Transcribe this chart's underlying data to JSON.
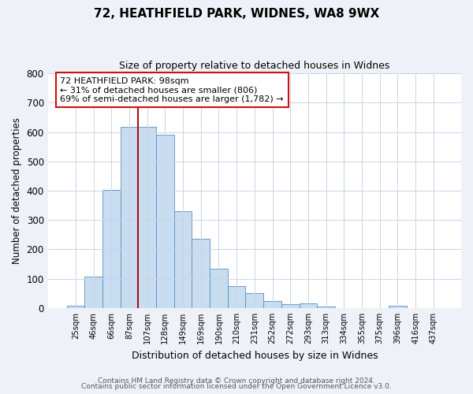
{
  "title": "72, HEATHFIELD PARK, WIDNES, WA8 9WX",
  "subtitle": "Size of property relative to detached houses in Widnes",
  "xlabel": "Distribution of detached houses by size in Widnes",
  "ylabel": "Number of detached properties",
  "bar_labels": [
    "25sqm",
    "46sqm",
    "66sqm",
    "87sqm",
    "107sqm",
    "128sqm",
    "149sqm",
    "169sqm",
    "190sqm",
    "210sqm",
    "231sqm",
    "252sqm",
    "272sqm",
    "293sqm",
    "313sqm",
    "334sqm",
    "355sqm",
    "375sqm",
    "396sqm",
    "416sqm",
    "437sqm"
  ],
  "bar_values": [
    8,
    106,
    403,
    617,
    617,
    591,
    330,
    236,
    133,
    76,
    50,
    24,
    13,
    16,
    4,
    0,
    0,
    0,
    8,
    0,
    0
  ],
  "bar_color": "#c9ddf0",
  "bar_edge_color": "#5b8ec4",
  "vline_color": "#aa1111",
  "ylim": [
    0,
    800
  ],
  "yticks": [
    0,
    100,
    200,
    300,
    400,
    500,
    600,
    700,
    800
  ],
  "annotation_title": "72 HEATHFIELD PARK: 98sqm",
  "annotation_line1": "← 31% of detached houses are smaller (806)",
  "annotation_line2": "69% of semi-detached houses are larger (1,782) →",
  "footer1": "Contains HM Land Registry data © Crown copyright and database right 2024.",
  "footer2": "Contains public sector information licensed under the Open Government Licence v3.0.",
  "bg_color": "#eef2f8",
  "plot_bg_color": "#ffffff",
  "grid_color": "#c8d4e8"
}
